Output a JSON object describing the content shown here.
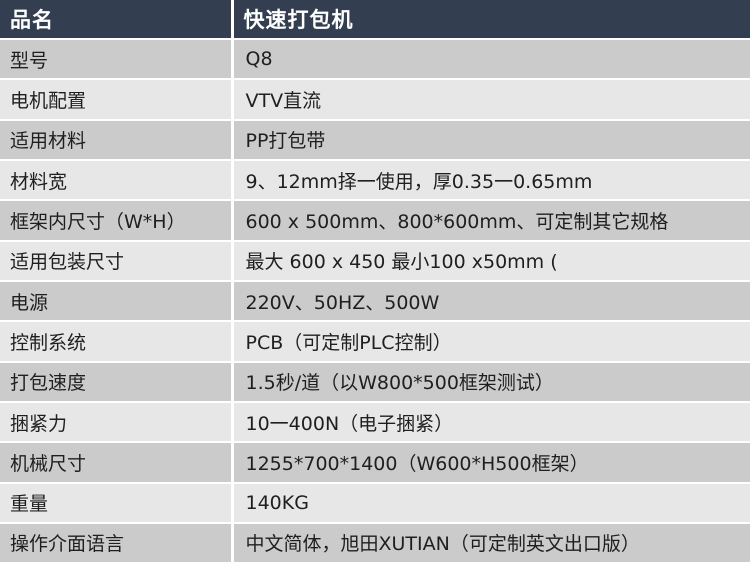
{
  "table": {
    "header": {
      "col1": "品名",
      "col2": "快速打包机"
    },
    "rows": [
      {
        "label": "型号",
        "value": "Q8"
      },
      {
        "label": "电机配置",
        "value": "VTV直流"
      },
      {
        "label": "适用材料",
        "value": "PP打包带"
      },
      {
        "label": "材料宽",
        "value": "9、12mm择一使用，厚0.35一0.65mm"
      },
      {
        "label": "框架内尺寸（W*H）",
        "value": "600 x 500mm、800*600mm、可定制其它规格"
      },
      {
        "label": "适用包装尺寸",
        "value": "最大 600 x 450  最小100 x50mm ("
      },
      {
        "label": "电源",
        "value": "220V、50HZ、500W"
      },
      {
        "label": "控制系统",
        "value": "PCB（可定制PLC控制）"
      },
      {
        "label": "打包速度",
        "value": "1.5秒/道（以W800*500框架测试）"
      },
      {
        "label": "捆紧力",
        "value": "10一400N（电子捆紧）"
      },
      {
        "label": "机械尺寸",
        "value": "1255*700*1400（W600*H500框架）"
      },
      {
        "label": "重量",
        "value": "140KG"
      },
      {
        "label": "操作介面语言",
        "value": "中文简体，旭田XUTIAN（可定制英文出口版）"
      }
    ],
    "colors": {
      "header_bg": "#333F50",
      "header_text": "#FFFFFF",
      "row_band_dark": "#CBCBCB",
      "row_band_light": "#E7E7E7",
      "grid_line": "#FFFFFF",
      "body_text": "#1F1F1F"
    }
  }
}
